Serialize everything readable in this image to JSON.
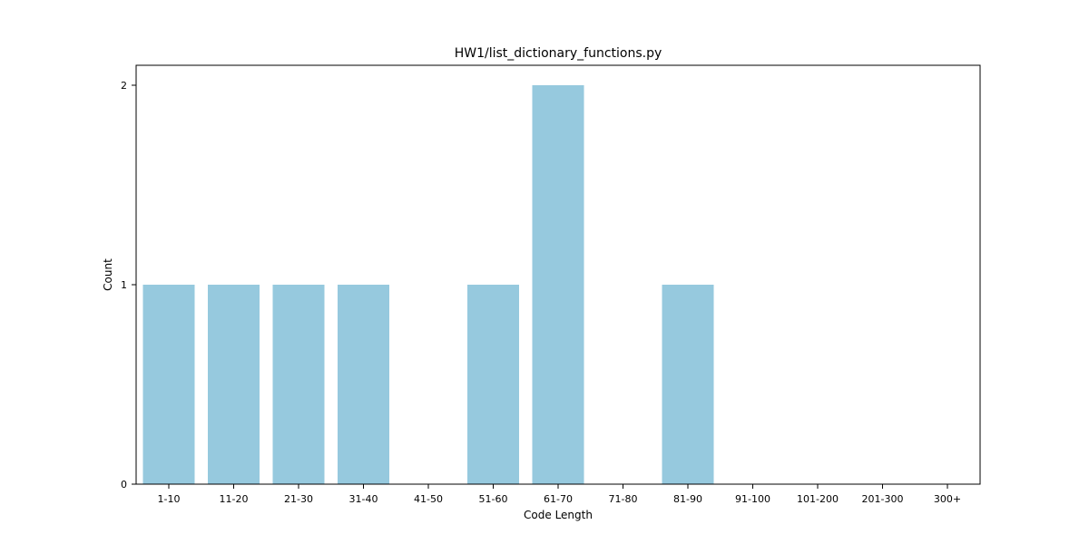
{
  "chart_data": {
    "type": "bar",
    "title": "HW1/list_dictionary_functions.py",
    "xlabel": "Code Length",
    "ylabel": "Count",
    "categories": [
      "1-10",
      "11-20",
      "21-30",
      "31-40",
      "41-50",
      "51-60",
      "61-70",
      "71-80",
      "81-90",
      "91-100",
      "101-200",
      "201-300",
      "300+"
    ],
    "values": [
      1,
      1,
      1,
      1,
      0,
      1,
      2,
      0,
      1,
      0,
      0,
      0,
      0
    ],
    "ylim": [
      0,
      2.1
    ],
    "yticks": [
      0,
      1,
      2
    ],
    "grid": false,
    "legend": "none",
    "bar_color": "#96c9de",
    "axis_color": "#000000"
  }
}
